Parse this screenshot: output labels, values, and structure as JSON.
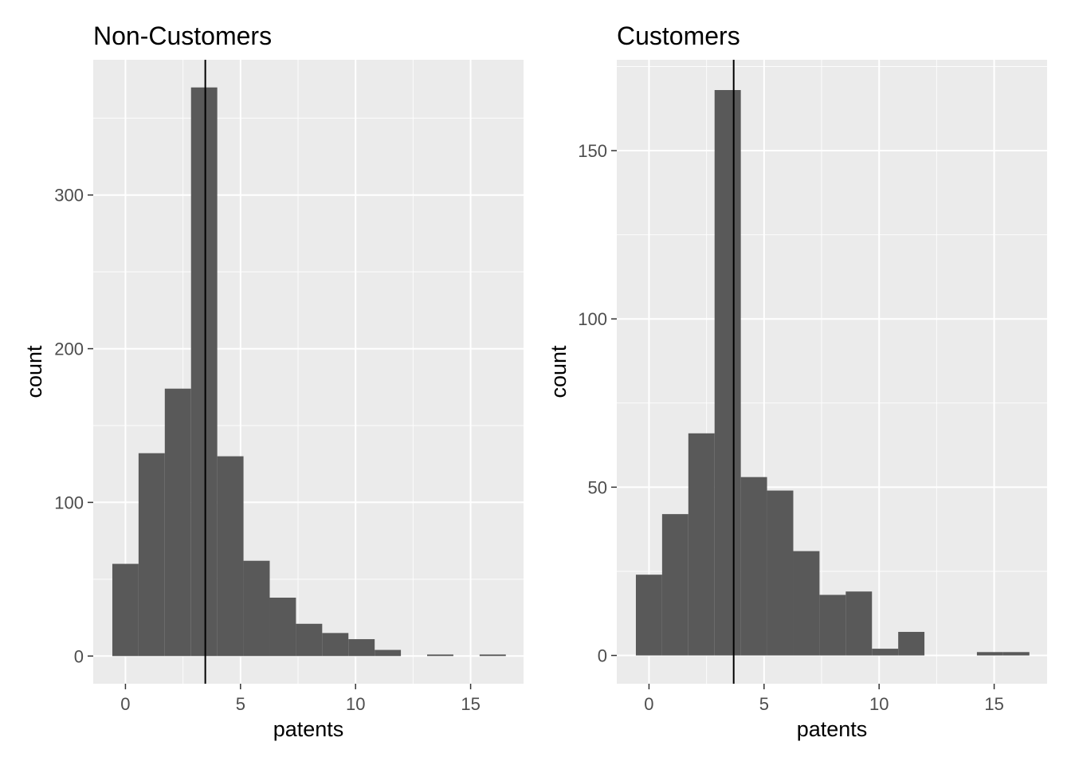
{
  "chart_data": [
    {
      "type": "bar",
      "title": "Non-Customers",
      "xlabel": "patents",
      "ylabel": "count",
      "binwidth": 1.14,
      "bins": [
        {
          "x": 0,
          "count": 60
        },
        {
          "x": 1.14,
          "count": 132
        },
        {
          "x": 2.28,
          "count": 174
        },
        {
          "x": 3.42,
          "count": 370
        },
        {
          "x": 4.56,
          "count": 130
        },
        {
          "x": 5.7,
          "count": 62
        },
        {
          "x": 6.84,
          "count": 38
        },
        {
          "x": 7.98,
          "count": 21
        },
        {
          "x": 9.12,
          "count": 15
        },
        {
          "x": 10.26,
          "count": 11
        },
        {
          "x": 11.4,
          "count": 4
        },
        {
          "x": 12.54,
          "count": 0
        },
        {
          "x": 13.68,
          "count": 1
        },
        {
          "x": 14.82,
          "count": 0
        },
        {
          "x": 15.96,
          "count": 1
        }
      ],
      "xlim": [
        -1.4,
        17.3
      ],
      "ylim": [
        -18,
        388
      ],
      "x_ticks": [
        0,
        5,
        10,
        15
      ],
      "x_tick_labels": [
        "0",
        "5",
        "10",
        "15"
      ],
      "y_ticks": [
        0,
        100,
        200,
        300
      ],
      "y_tick_labels": [
        "0",
        "100",
        "200",
        "300"
      ],
      "mean": 3.47,
      "grid": true
    },
    {
      "type": "bar",
      "title": "Customers",
      "xlabel": "patents",
      "ylabel": "count",
      "binwidth": 1.14,
      "bins": [
        {
          "x": 0,
          "count": 24
        },
        {
          "x": 1.14,
          "count": 42
        },
        {
          "x": 2.28,
          "count": 66
        },
        {
          "x": 3.42,
          "count": 168
        },
        {
          "x": 4.56,
          "count": 53
        },
        {
          "x": 5.7,
          "count": 49
        },
        {
          "x": 6.84,
          "count": 31
        },
        {
          "x": 7.98,
          "count": 18
        },
        {
          "x": 9.12,
          "count": 19
        },
        {
          "x": 10.26,
          "count": 2
        },
        {
          "x": 11.4,
          "count": 7
        },
        {
          "x": 12.54,
          "count": 0
        },
        {
          "x": 13.68,
          "count": 0
        },
        {
          "x": 14.82,
          "count": 1
        },
        {
          "x": 15.96,
          "count": 1
        }
      ],
      "xlim": [
        -1.4,
        17.3
      ],
      "ylim": [
        -8.4,
        177
      ],
      "x_ticks": [
        0,
        5,
        10,
        15
      ],
      "x_tick_labels": [
        "0",
        "5",
        "10",
        "15"
      ],
      "y_ticks": [
        0,
        50,
        100,
        150
      ],
      "y_tick_labels": [
        "0",
        "50",
        "100",
        "150"
      ],
      "mean": 3.68,
      "grid": true
    }
  ]
}
